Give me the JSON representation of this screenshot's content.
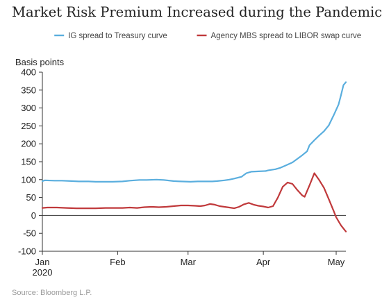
{
  "chart_data": {
    "type": "line",
    "title": "Market Risk Premium Increased during the Pandemic",
    "ylabel": "Basis points",
    "xlabel": "",
    "ylim": [
      -100,
      400
    ],
    "yticks": [
      400,
      350,
      300,
      250,
      200,
      150,
      100,
      50,
      0,
      -50,
      -100
    ],
    "yticklabels": [
      "400",
      "350",
      "300",
      "250",
      "200",
      "150",
      "100",
      "50",
      "0",
      "-50",
      "-100"
    ],
    "xlim": [
      "2020-01-01",
      "2020-05-05"
    ],
    "xticks": [
      {
        "label": "Jan",
        "sublabel": "2020",
        "date": "2020-01-01"
      },
      {
        "label": "Feb",
        "sublabel": "",
        "date": "2020-02-01"
      },
      {
        "label": "Mar",
        "sublabel": "",
        "date": "2020-03-01"
      },
      {
        "label": "Apr",
        "sublabel": "",
        "date": "2020-04-01"
      },
      {
        "label": "May",
        "sublabel": "",
        "date": "2020-05-01"
      }
    ],
    "zero_line": true,
    "grid": false,
    "legend_position": "top",
    "series": [
      {
        "name": "IG spread to Treasury curve",
        "color": "#5aaede",
        "points": [
          [
            "2020-01-01",
            96
          ],
          [
            "2020-01-02",
            98
          ],
          [
            "2020-01-06",
            97
          ],
          [
            "2020-01-09",
            97
          ],
          [
            "2020-01-13",
            96
          ],
          [
            "2020-01-16",
            95
          ],
          [
            "2020-01-20",
            95
          ],
          [
            "2020-01-23",
            94
          ],
          [
            "2020-01-27",
            94
          ],
          [
            "2020-01-30",
            94
          ],
          [
            "2020-02-03",
            95
          ],
          [
            "2020-02-06",
            97
          ],
          [
            "2020-02-10",
            99
          ],
          [
            "2020-02-13",
            99
          ],
          [
            "2020-02-17",
            100
          ],
          [
            "2020-02-20",
            99
          ],
          [
            "2020-02-24",
            96
          ],
          [
            "2020-02-27",
            95
          ],
          [
            "2020-03-02",
            94
          ],
          [
            "2020-03-05",
            95
          ],
          [
            "2020-03-09",
            95
          ],
          [
            "2020-03-11",
            95
          ],
          [
            "2020-03-13",
            96
          ],
          [
            "2020-03-16",
            98
          ],
          [
            "2020-03-18",
            100
          ],
          [
            "2020-03-20",
            103
          ],
          [
            "2020-03-23",
            108
          ],
          [
            "2020-03-25",
            118
          ],
          [
            "2020-03-27",
            122
          ],
          [
            "2020-03-30",
            123
          ],
          [
            "2020-04-02",
            124
          ],
          [
            "2020-04-03",
            126
          ],
          [
            "2020-04-06",
            129
          ],
          [
            "2020-04-08",
            133
          ],
          [
            "2020-04-10",
            139
          ],
          [
            "2020-04-13",
            148
          ],
          [
            "2020-04-15",
            158
          ],
          [
            "2020-04-17",
            168
          ],
          [
            "2020-04-19",
            179
          ],
          [
            "2020-04-20",
            196
          ],
          [
            "2020-04-22",
            210
          ],
          [
            "2020-04-24",
            223
          ],
          [
            "2020-04-26",
            235
          ],
          [
            "2020-04-28",
            252
          ],
          [
            "2020-04-30",
            280
          ],
          [
            "2020-05-02",
            310
          ],
          [
            "2020-05-03",
            336
          ],
          [
            "2020-05-04",
            364
          ],
          [
            "2020-05-05",
            372
          ]
        ]
      },
      {
        "name": "Agency MBS spread to LIBOR swap curve",
        "color": "#c0393b",
        "points": [
          [
            "2020-01-01",
            21
          ],
          [
            "2020-01-03",
            22
          ],
          [
            "2020-01-07",
            22
          ],
          [
            "2020-01-11",
            21
          ],
          [
            "2020-01-15",
            20
          ],
          [
            "2020-01-19",
            20
          ],
          [
            "2020-01-23",
            20
          ],
          [
            "2020-01-27",
            21
          ],
          [
            "2020-01-30",
            21
          ],
          [
            "2020-02-03",
            21
          ],
          [
            "2020-02-06",
            22
          ],
          [
            "2020-02-09",
            21
          ],
          [
            "2020-02-12",
            23
          ],
          [
            "2020-02-15",
            24
          ],
          [
            "2020-02-18",
            23
          ],
          [
            "2020-02-21",
            24
          ],
          [
            "2020-02-24",
            26
          ],
          [
            "2020-02-27",
            28
          ],
          [
            "2020-03-01",
            28
          ],
          [
            "2020-03-04",
            27
          ],
          [
            "2020-03-06",
            26
          ],
          [
            "2020-03-08",
            28
          ],
          [
            "2020-03-10",
            32
          ],
          [
            "2020-03-12",
            30
          ],
          [
            "2020-03-14",
            26
          ],
          [
            "2020-03-16",
            24
          ],
          [
            "2020-03-18",
            22
          ],
          [
            "2020-03-20",
            20
          ],
          [
            "2020-03-22",
            24
          ],
          [
            "2020-03-24",
            31
          ],
          [
            "2020-03-26",
            35
          ],
          [
            "2020-03-28",
            30
          ],
          [
            "2020-03-30",
            27
          ],
          [
            "2020-04-01",
            25
          ],
          [
            "2020-04-03",
            22
          ],
          [
            "2020-04-05",
            26
          ],
          [
            "2020-04-07",
            50
          ],
          [
            "2020-04-09",
            80
          ],
          [
            "2020-04-11",
            92
          ],
          [
            "2020-04-13",
            88
          ],
          [
            "2020-04-15",
            71
          ],
          [
            "2020-04-17",
            56
          ],
          [
            "2020-04-18",
            52
          ],
          [
            "2020-04-20",
            84
          ],
          [
            "2020-04-22",
            118
          ],
          [
            "2020-04-24",
            99
          ],
          [
            "2020-04-26",
            77
          ],
          [
            "2020-04-28",
            45
          ],
          [
            "2020-04-30",
            12
          ],
          [
            "2020-05-01",
            -5
          ],
          [
            "2020-05-03",
            -28
          ],
          [
            "2020-05-05",
            -45
          ]
        ]
      }
    ]
  },
  "source": "Source: Bloomberg L.P."
}
